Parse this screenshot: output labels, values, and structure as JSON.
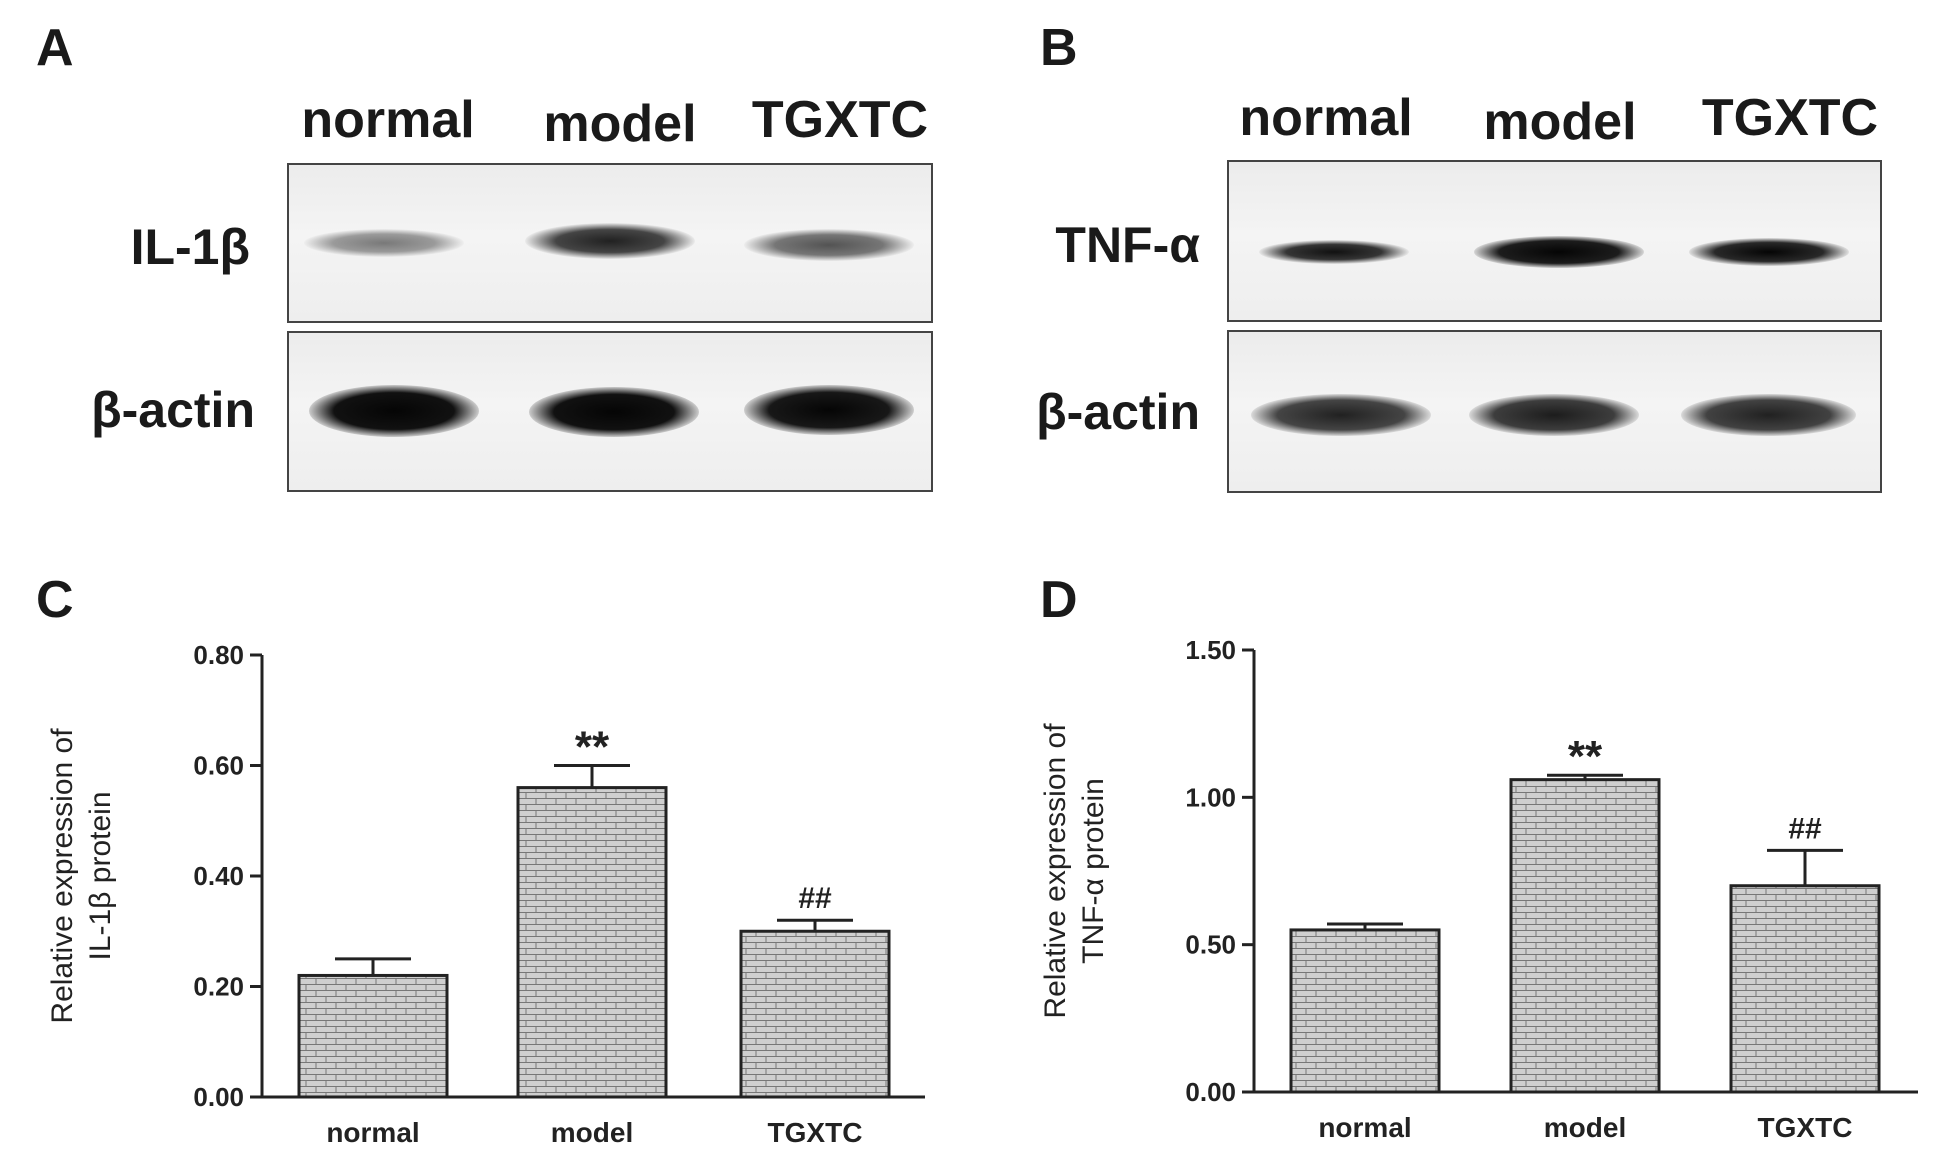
{
  "blots": [
    {
      "letter": "A",
      "lanes": [
        "normal",
        "model",
        "TGXTC"
      ],
      "rows": [
        {
          "label": "IL-1β",
          "intensities": [
            0.45,
            0.8,
            0.6
          ]
        },
        {
          "label": "β-actin",
          "intensities": [
            0.95,
            0.95,
            0.92
          ]
        }
      ]
    },
    {
      "letter": "B",
      "lanes": [
        "normal",
        "model",
        "TGXTC"
      ],
      "rows": [
        {
          "label": "TNF-α",
          "intensities": [
            0.75,
            0.95,
            0.85
          ]
        },
        {
          "label": "β-actin",
          "intensities": [
            0.72,
            0.78,
            0.75
          ]
        }
      ]
    }
  ],
  "chart_data": [
    {
      "letter": "C",
      "type": "bar",
      "categories": [
        "normal",
        "model",
        "TGXTC"
      ],
      "values": [
        0.22,
        0.56,
        0.3
      ],
      "errors": [
        0.03,
        0.04,
        0.02
      ],
      "annotations": [
        "",
        "**",
        "##"
      ],
      "ylabel": [
        "Relative expression of",
        "IL-1β protein"
      ],
      "ylim": [
        0,
        0.8
      ],
      "yticks": [
        "0.00",
        "0.20",
        "0.40",
        "0.60",
        "0.80"
      ],
      "grid": false,
      "bar_fill": "brick-pattern"
    },
    {
      "letter": "D",
      "type": "bar",
      "categories": [
        "normal",
        "model",
        "TGXTC"
      ],
      "values": [
        0.55,
        1.06,
        0.7
      ],
      "errors": [
        0.02,
        0.015,
        0.12
      ],
      "annotations": [
        "",
        "**",
        "##"
      ],
      "ylabel": [
        "Relative expression of",
        "TNF-α protein"
      ],
      "ylim": [
        0,
        1.5
      ],
      "yticks": [
        "0.00",
        "0.50",
        "1.00",
        "1.50"
      ],
      "grid": false,
      "bar_fill": "brick-pattern"
    }
  ]
}
